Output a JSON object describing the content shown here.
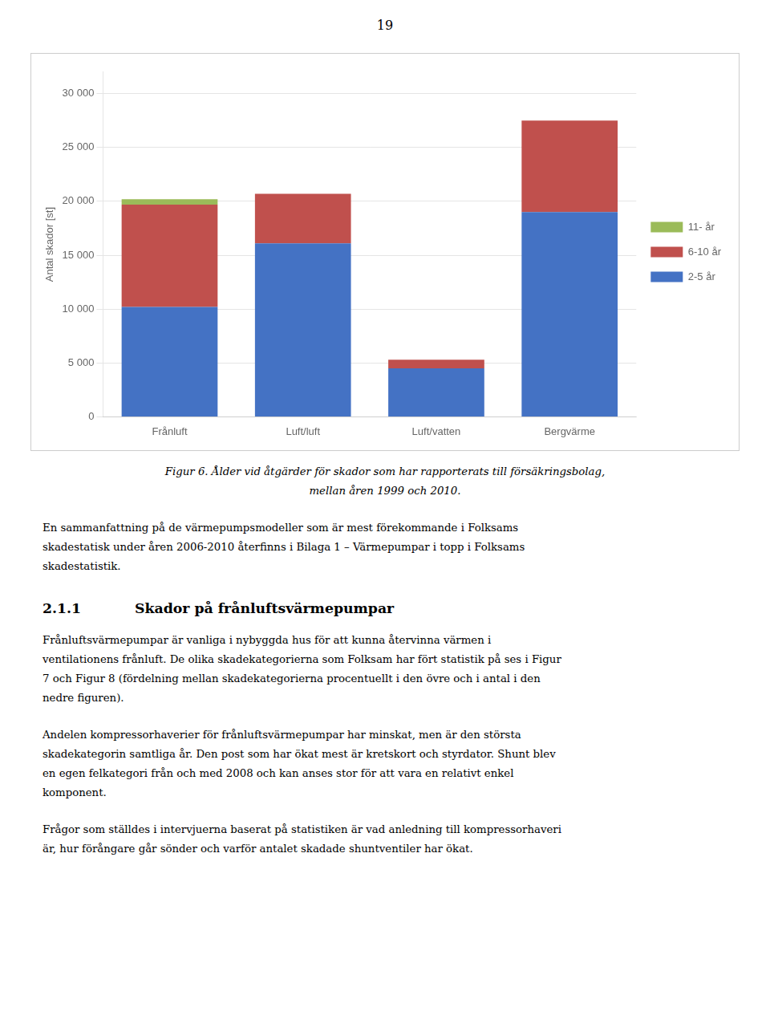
{
  "chart_data": {
    "type": "bar",
    "stacked": true,
    "categories": [
      "Frånluft",
      "Luft/luft",
      "Luft/vatten",
      "Bergvärme"
    ],
    "series": [
      {
        "name": "2-5 år",
        "color": "#4472C4",
        "values": [
          10200,
          16100,
          4500,
          19000
        ]
      },
      {
        "name": "6-10 år",
        "color": "#C0504D",
        "values": [
          9500,
          4600,
          800,
          8500
        ]
      },
      {
        "name": "11- år",
        "color": "#9BBB59",
        "values": [
          500,
          0,
          0,
          0
        ]
      }
    ],
    "ylabel": "Antal skador [st]",
    "ylim": [
      0,
      32000
    ],
    "yticks": [
      0,
      {
        "value": 5000,
        "label": "5 000"
      },
      {
        "value": 10000,
        "label": "10 000"
      },
      {
        "value": 15000,
        "label": "15 000"
      },
      {
        "value": 20000,
        "label": "20 000"
      },
      {
        "value": 25000,
        "label": "25 000"
      },
      {
        "value": 30000,
        "label": "30 000"
      }
    ],
    "grid": true,
    "legend": "right",
    "annotations": [
      [
        "19"
      ],
      [
        "Figur 6. Ålder vid åtgärder för skador som har rapporterats till försäkringsbolag,",
        "mellan åren 1999 och 2010."
      ],
      [
        "En sammanfattning på de värmepumpsmodeller som är mest förekommande i Folksams",
        "skadestatisk under åren 2006-2010 återfinns i Bilaga 1 – Värmepumpar i topp i Folksams",
        "skadestatistik."
      ],
      [
        "2.1.1",
        "Skador på frånluftsvärmepumpar"
      ],
      [
        "Frånluftsvärmepumpar är vanliga i nybyggda hus för att kunna återvinna värmen i",
        "ventilationens frånluft. De olika skadekategorierna som Folksam har fört statistik på ses i Figur",
        "7 och Figur 8 (fördelning mellan skadekategorierna procentuellt i den övre och i antal i den",
        "nedre figuren)."
      ],
      [
        "Andelen kompressorhaverier för frånluftsvärmepumpar har minskat, men är den största",
        "skadekategorin samtliga år. Den post som har ökat mest är kretskort och styrdator. Shunt blev",
        "en egen felkategori från och med 2008 och kan anses stor för att vara en relativt enkel",
        "komponent."
      ],
      [
        "Frågor som ställdes i intervjuerna baserat på statistiken är vad anledning till kompressorhaveri",
        "är, hur förångare går sönder och varför antalet skadade shuntventiler har ökat."
      ]
    ]
  }
}
